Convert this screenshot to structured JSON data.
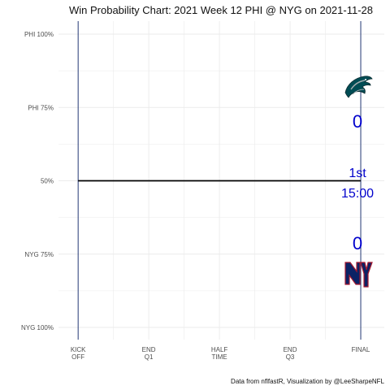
{
  "colors": {
    "home": "#0b2265",
    "away": "#004c54",
    "score_text": "#0000cc",
    "wp_line": "#000000",
    "grid": "#ebebeb",
    "giants_red": "#a71930"
  },
  "chart_data": {
    "type": "line",
    "title": "Win Probability Chart: 2021 Week 12 PHI @ NYG on 2021-11-28",
    "xlabel": "",
    "ylabel": "",
    "x_ticks": [
      {
        "label_top": "KICK",
        "label_bottom": "OFF",
        "value": 0
      },
      {
        "label_top": "END",
        "label_bottom": "Q1",
        "value": 900
      },
      {
        "label_top": "HALF",
        "label_bottom": "TIME",
        "value": 1800
      },
      {
        "label_top": "END",
        "label_bottom": "Q3",
        "value": 2700
      },
      {
        "label_top": "FINAL",
        "label_bottom": "",
        "value": 3600
      }
    ],
    "y_ticks": [
      {
        "label": "PHI 100%",
        "value": 0.0
      },
      {
        "label": "PHI 75%",
        "value": 0.25
      },
      {
        "label": "50%",
        "value": 0.5
      },
      {
        "label": "NYG 75%",
        "value": 0.75
      },
      {
        "label": "NYG 100%",
        "value": 1.0
      }
    ],
    "xlim": [
      -250,
      3900
    ],
    "ylim": [
      0,
      1
    ],
    "grid": true,
    "series": [
      {
        "x": [
          0,
          3600
        ],
        "y": [
          0.5,
          0.5
        ]
      }
    ],
    "annotations": {
      "away_team": "PHI",
      "home_team": "NYG",
      "away_score": "0",
      "home_score": "0",
      "quarter": "1st",
      "clock": "15:00"
    },
    "caption": "Data from nflfastR, Visualization by @LeeSharpeNFL"
  }
}
